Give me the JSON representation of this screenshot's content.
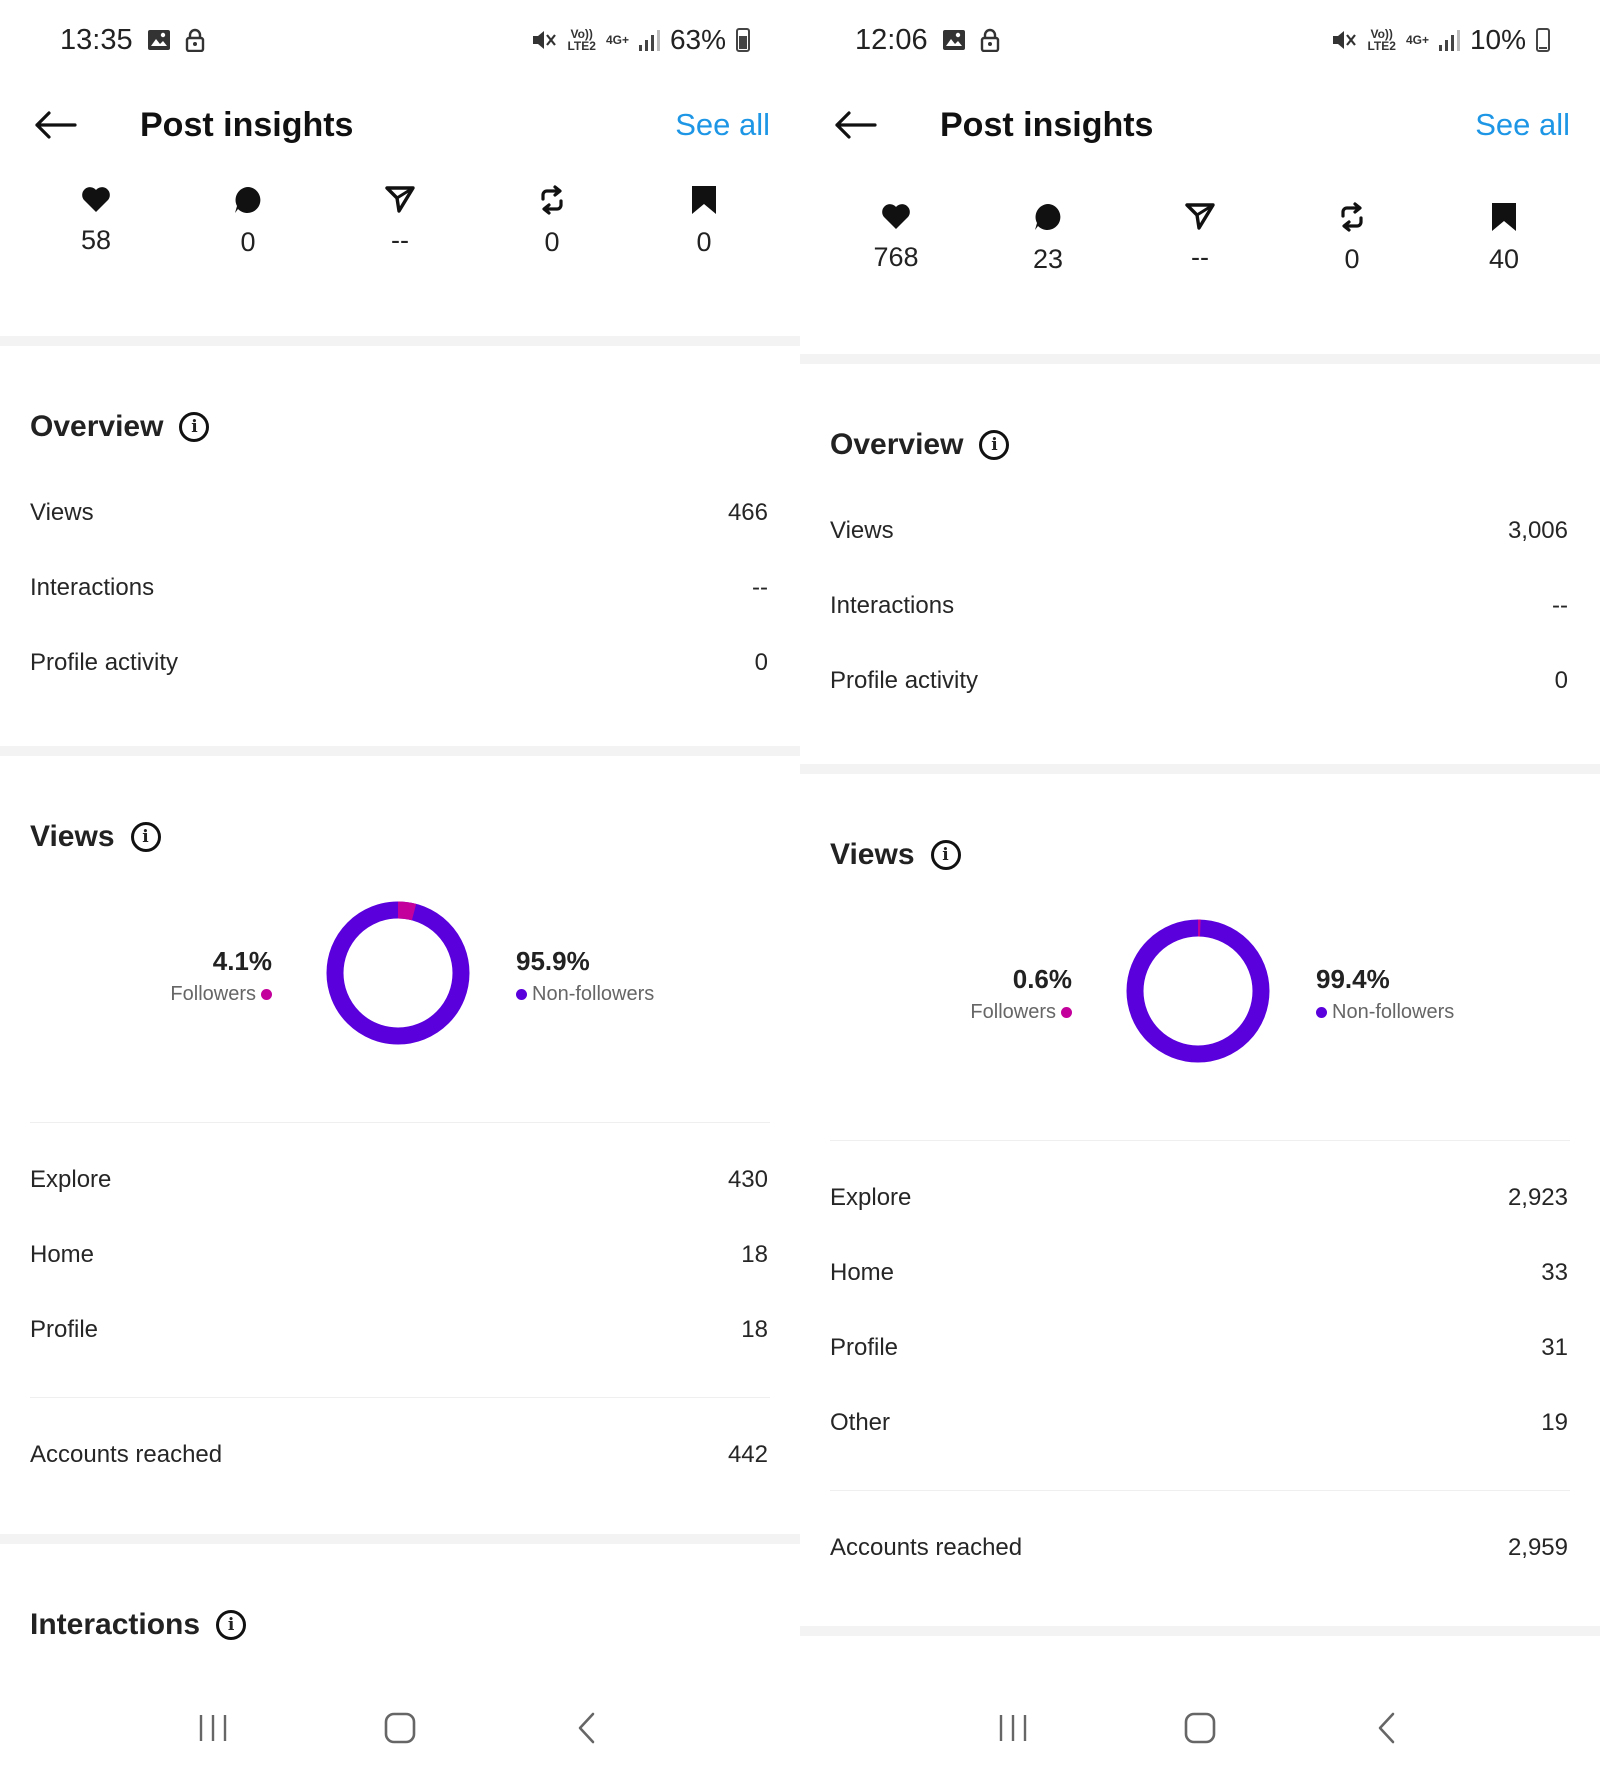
{
  "screens": [
    {
      "status": {
        "time": "13:35",
        "battery": "63%",
        "battery_level": 0.63,
        "net1": "Vo))\nLTE2",
        "net2": "4G+"
      },
      "header": {
        "title": "Post insights",
        "see_all": "See all"
      },
      "metrics": {
        "likes": "58",
        "comments": "0",
        "shares": "--",
        "reposts": "0",
        "saves": "0"
      },
      "overview": {
        "title": "Overview",
        "rows": [
          {
            "label": "Views",
            "value": "466"
          },
          {
            "label": "Interactions",
            "value": "--"
          },
          {
            "label": "Profile activity",
            "value": "0"
          }
        ]
      },
      "views": {
        "title": "Views",
        "followers_pct": "4.1%",
        "followers_label": "Followers",
        "nonfollowers_pct": "95.9%",
        "nonfollowers_label": "Non-followers",
        "followers_fraction": 0.041,
        "sources": [
          {
            "label": "Explore",
            "value": "430"
          },
          {
            "label": "Home",
            "value": "18"
          },
          {
            "label": "Profile",
            "value": "18"
          }
        ],
        "accounts_reached_label": "Accounts reached",
        "accounts_reached": "442"
      },
      "interactions": {
        "title": "Interactions"
      }
    },
    {
      "status": {
        "time": "12:06",
        "battery": "10%",
        "battery_level": 0.1,
        "net1": "Vo))\nLTE2",
        "net2": "4G+"
      },
      "header": {
        "title": "Post insights",
        "see_all": "See all"
      },
      "metrics": {
        "likes": "768",
        "comments": "23",
        "shares": "--",
        "reposts": "0",
        "saves": "40"
      },
      "overview": {
        "title": "Overview",
        "rows": [
          {
            "label": "Views",
            "value": "3,006"
          },
          {
            "label": "Interactions",
            "value": "--"
          },
          {
            "label": "Profile activity",
            "value": "0"
          }
        ]
      },
      "views": {
        "title": "Views",
        "followers_pct": "0.6%",
        "followers_label": "Followers",
        "nonfollowers_pct": "99.4%",
        "nonfollowers_label": "Non-followers",
        "followers_fraction": 0.006,
        "sources": [
          {
            "label": "Explore",
            "value": "2,923"
          },
          {
            "label": "Home",
            "value": "33"
          },
          {
            "label": "Profile",
            "value": "31"
          },
          {
            "label": "Other",
            "value": "19"
          }
        ],
        "accounts_reached_label": "Accounts reached",
        "accounts_reached": "2,959"
      }
    }
  ],
  "colors": {
    "accent": "#1e96e6",
    "followers": "#c3009b",
    "nonfollowers": "#5a00dc"
  },
  "icons": [
    "back-arrow-icon",
    "heart-icon",
    "comment-icon",
    "share-icon",
    "repost-icon",
    "bookmark-icon",
    "info-icon",
    "recents-icon",
    "home-icon",
    "nav-back-icon"
  ]
}
